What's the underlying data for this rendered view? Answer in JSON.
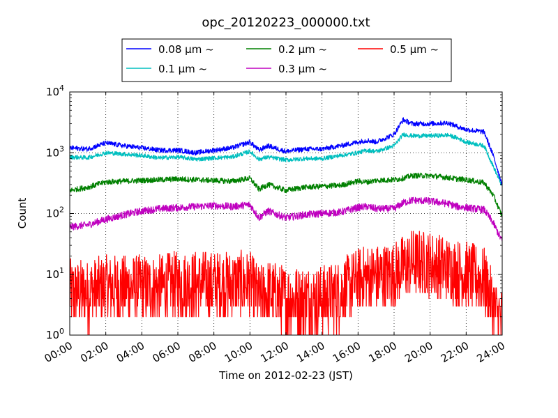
{
  "chart_data": {
    "type": "line",
    "title": "opc_20120223_000000.txt",
    "xlabel": "Time on 2012-02-23 (JST)",
    "ylabel": "Count",
    "x_unit": "hours",
    "xlim": [
      0,
      24
    ],
    "ylim": [
      1,
      10000
    ],
    "yscale": "log",
    "grid": true,
    "legend_position": "top-center",
    "x_tick_labels": [
      "00:00",
      "02:00",
      "04:00",
      "06:00",
      "08:00",
      "10:00",
      "12:00",
      "14:00",
      "16:00",
      "18:00",
      "20:00",
      "22:00",
      "24:00"
    ],
    "y_tick_labels": [
      {
        "base": "10",
        "exp": "0"
      },
      {
        "base": "10",
        "exp": "1"
      },
      {
        "base": "10",
        "exp": "2"
      },
      {
        "base": "10",
        "exp": "3"
      },
      {
        "base": "10",
        "exp": "4"
      }
    ],
    "series": [
      {
        "name": "0.08 μm ~",
        "color": "#0000ff",
        "noise": 0.04,
        "x": [
          0,
          1,
          2,
          3,
          4,
          5,
          6,
          7,
          8,
          9,
          10,
          10.5,
          11,
          12,
          13,
          14,
          15,
          16,
          16.5,
          17,
          18,
          18.5,
          19,
          20,
          21,
          21.5,
          22,
          23,
          23.5,
          24
        ],
        "y": [
          1200,
          1150,
          1450,
          1300,
          1200,
          1100,
          1100,
          1000,
          1100,
          1200,
          1500,
          1100,
          1300,
          1050,
          1150,
          1150,
          1300,
          1500,
          1600,
          1500,
          2000,
          3500,
          3000,
          3000,
          3100,
          2700,
          2400,
          2200,
          900,
          300
        ]
      },
      {
        "name": "0.1 μm ~",
        "color": "#00bfbf",
        "noise": 0.035,
        "x": [
          0,
          1,
          2,
          3,
          4,
          5,
          6,
          7,
          8,
          9,
          10,
          10.5,
          11,
          12,
          13,
          14,
          15,
          16,
          16.5,
          17,
          18,
          18.5,
          19,
          20,
          21,
          21.5,
          22,
          23,
          23.5,
          24
        ],
        "y": [
          850,
          830,
          1000,
          950,
          900,
          820,
          850,
          780,
          820,
          850,
          1050,
          780,
          850,
          760,
          800,
          800,
          900,
          1000,
          1100,
          1050,
          1300,
          2000,
          1900,
          1900,
          1950,
          1750,
          1500,
          1300,
          600,
          280
        ]
      },
      {
        "name": "0.2 μm ~",
        "color": "#008000",
        "noise": 0.045,
        "x": [
          0,
          1,
          2,
          3,
          4,
          5,
          6,
          7,
          8,
          9,
          10,
          10.5,
          11,
          12,
          13,
          14,
          15,
          16,
          16.5,
          17,
          18,
          18.5,
          19,
          20,
          21,
          21.5,
          22,
          23,
          23.5,
          24
        ],
        "y": [
          240,
          270,
          330,
          340,
          350,
          360,
          370,
          360,
          350,
          340,
          380,
          250,
          300,
          240,
          270,
          280,
          290,
          340,
          330,
          350,
          360,
          380,
          420,
          420,
          390,
          370,
          360,
          320,
          200,
          90
        ]
      },
      {
        "name": "0.3 μm ~",
        "color": "#bf00bf",
        "noise": 0.06,
        "x": [
          0,
          1,
          2,
          3,
          4,
          5,
          6,
          7,
          8,
          9,
          10,
          10.5,
          11,
          12,
          13,
          14,
          15,
          16,
          16.5,
          17,
          18,
          18.5,
          19,
          20,
          21,
          21.5,
          22,
          23,
          23.5,
          24
        ],
        "y": [
          60,
          65,
          80,
          95,
          110,
          120,
          125,
          130,
          135,
          130,
          140,
          85,
          110,
          85,
          95,
          100,
          105,
          125,
          130,
          120,
          120,
          150,
          165,
          160,
          145,
          130,
          125,
          115,
          70,
          35
        ]
      },
      {
        "name": "0.5 μm ~",
        "color": "#ff0000",
        "noise": 0.25,
        "x": [
          0,
          1,
          2,
          3,
          4,
          5,
          6,
          7,
          8,
          9,
          10,
          10.5,
          11,
          12,
          13,
          14,
          15,
          16,
          16.5,
          17,
          18,
          18.5,
          19,
          20,
          21,
          21.5,
          22,
          23,
          23.5,
          24
        ],
        "y": [
          5,
          5,
          6,
          6,
          6,
          6,
          7,
          7,
          7,
          7,
          7,
          4,
          5,
          4,
          4,
          4,
          5,
          8,
          9,
          9,
          10,
          13,
          16,
          15,
          12,
          11,
          10,
          8,
          3,
          1.5
        ]
      }
    ]
  }
}
